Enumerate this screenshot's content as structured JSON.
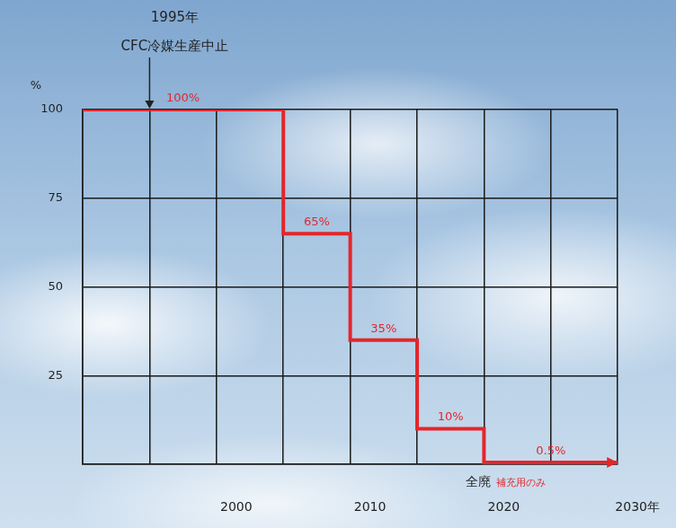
{
  "chart_data": {
    "type": "line",
    "line_style": "step",
    "color": "#e3262c",
    "y_label": "%",
    "annotations": [
      {
        "text": "1995年",
        "x": 1995,
        "y": 100
      },
      {
        "text": "CFC冷媒生産中止",
        "x": 1995,
        "y": 100
      },
      {
        "text": "全廃",
        "x": 2020,
        "y": 0
      },
      {
        "text": "補充用のみ",
        "x": 2020,
        "y": 0,
        "color": "#e3262c"
      }
    ],
    "x": [
      1990,
      2005,
      2010,
      2015,
      2020,
      2030
    ],
    "values": [
      100,
      65,
      35,
      10,
      0.5,
      0.5
    ],
    "value_labels": [
      "100%",
      "65%",
      "35%",
      "10%",
      "0.5%",
      null
    ],
    "data_labels": true,
    "xlim": [
      1990,
      2030
    ],
    "xticks": [
      {
        "value": 1990,
        "label": null
      },
      {
        "value": 1995,
        "label": null
      },
      2000,
      {
        "value": 2005,
        "label": null
      },
      2010,
      {
        "value": 2015,
        "label": null
      },
      2020,
      {
        "value": 2025,
        "label": null
      },
      {
        "value": 2030,
        "label": "2030年"
      }
    ],
    "ylim": [
      0,
      100
    ],
    "yticks": [
      {
        "value": 0,
        "label": null
      },
      25,
      50,
      75,
      100
    ],
    "grid": true
  }
}
